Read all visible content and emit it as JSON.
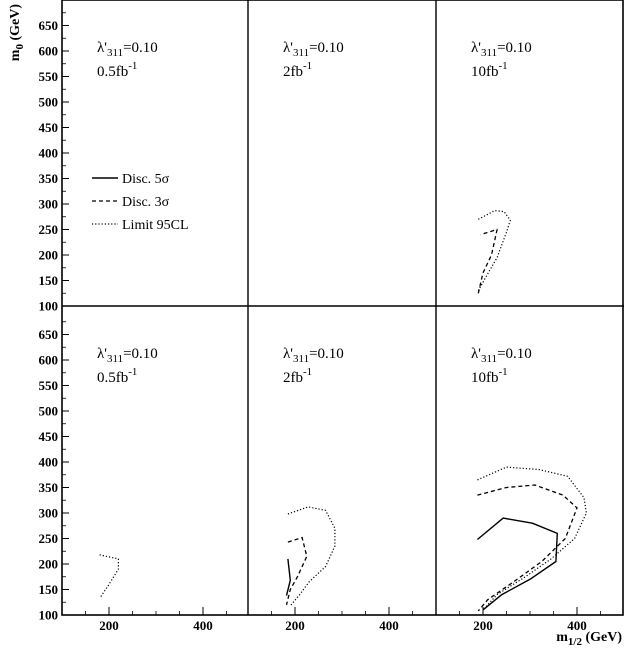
{
  "chart_data": {
    "type": "line",
    "xlabel": "m",
    "xlabel_sub": "1/2",
    "xlabel_unit": " (GeV)",
    "ylabel": "m",
    "ylabel_sub": "0",
    "ylabel_unit": " (GeV)",
    "xlim": [
      100,
      500
    ],
    "ylim": [
      100,
      700
    ],
    "xticks": [
      200,
      400
    ],
    "yticks": [
      100,
      150,
      200,
      250,
      300,
      350,
      400,
      450,
      500,
      550,
      600,
      650
    ],
    "legend": {
      "placement": "top-left panel, middle-left",
      "items": [
        {
          "key": "d5",
          "label": "Disc. 5σ",
          "style": "solid"
        },
        {
          "key": "d3",
          "label": "Disc. 3σ",
          "style": "dashed"
        },
        {
          "key": "lim",
          "label": "Limit 95CL",
          "style": "dotted"
        }
      ]
    },
    "panels": [
      {
        "row": 0,
        "col": 0,
        "lambda_pre": "λ'",
        "lambda_sub": "311",
        "lambda_post": "=0.10",
        "lumi_pre": "0.5fb",
        "lumi_sup": "-1",
        "series": []
      },
      {
        "row": 0,
        "col": 1,
        "lambda_pre": "λ'",
        "lambda_sub": "311",
        "lambda_post": "=0.10",
        "lumi_pre": "2fb",
        "lumi_sup": "-1",
        "series": []
      },
      {
        "row": 0,
        "col": 2,
        "lambda_pre": "λ'",
        "lambda_sub": "311",
        "lambda_post": "=0.10",
        "lumi_pre": "10fb",
        "lumi_sup": "-1",
        "series": [
          {
            "type": "d3",
            "points": [
              [
                190,
                125
              ],
              [
                200,
                165
              ],
              [
                218,
                200
              ],
              [
                230,
                250
              ],
              [
                195,
                240
              ]
            ]
          },
          {
            "type": "lim",
            "points": [
              [
                190,
                270
              ],
              [
                225,
                287
              ],
              [
                245,
                285
              ],
              [
                258,
                268
              ],
              [
                250,
                245
              ],
              [
                230,
                195
              ],
              [
                205,
                155
              ],
              [
                190,
                130
              ]
            ]
          }
        ]
      },
      {
        "row": 1,
        "col": 0,
        "lambda_pre": "λ'",
        "lambda_sub": "311",
        "lambda_post": "=0.10",
        "lumi_pre": "0.5fb",
        "lumi_sup": "-1",
        "series": [
          {
            "type": "lim",
            "points": [
              [
                180,
                218
              ],
              [
                220,
                210
              ],
              [
                220,
                190
              ],
              [
                200,
                160
              ],
              [
                182,
                135
              ]
            ]
          }
        ]
      },
      {
        "row": 1,
        "col": 1,
        "lambda_pre": "λ'",
        "lambda_sub": "311",
        "lambda_post": "=0.10",
        "lumi_pre": "2fb",
        "lumi_sup": "-1",
        "series": [
          {
            "type": "d5",
            "points": [
              [
                185,
                210
              ],
              [
                190,
                168
              ],
              [
                182,
                138
              ]
            ]
          },
          {
            "type": "d3",
            "points": [
              [
                185,
                243
              ],
              [
                215,
                252
              ],
              [
                225,
                215
              ],
              [
                205,
                175
              ],
              [
                190,
                150
              ],
              [
                182,
                120
              ]
            ]
          },
          {
            "type": "lim",
            "points": [
              [
                185,
                298
              ],
              [
                228,
                312
              ],
              [
                265,
                305
              ],
              [
                285,
                270
              ],
              [
                285,
                235
              ],
              [
                265,
                195
              ],
              [
                230,
                165
              ],
              [
                210,
                140
              ],
              [
                190,
                118
              ]
            ]
          }
        ]
      },
      {
        "row": 1,
        "col": 2,
        "lambda_pre": "λ'",
        "lambda_sub": "311",
        "lambda_post": "=0.10",
        "lumi_pre": "10fb",
        "lumi_sup": "-1",
        "series": [
          {
            "type": "d5",
            "points": [
              [
                188,
                248
              ],
              [
                243,
                290
              ],
              [
                305,
                280
              ],
              [
                358,
                260
              ],
              [
                355,
                205
              ],
              [
                300,
                170
              ],
              [
                240,
                140
              ],
              [
                200,
                110
              ]
            ]
          },
          {
            "type": "d3",
            "points": [
              [
                188,
                335
              ],
              [
                250,
                350
              ],
              [
                310,
                355
              ],
              [
                370,
                335
              ],
              [
                400,
                310
              ],
              [
                375,
                250
              ],
              [
                325,
                205
              ],
              [
                265,
                165
              ],
              [
                210,
                130
              ],
              [
                190,
                108
              ]
            ]
          },
          {
            "type": "lim",
            "points": [
              [
                188,
                365
              ],
              [
                250,
                390
              ],
              [
                320,
                385
              ],
              [
                380,
                372
              ],
              [
                415,
                330
              ],
              [
                420,
                300
              ],
              [
                395,
                250
              ],
              [
                345,
                210
              ],
              [
                290,
                175
              ],
              [
                230,
                140
              ],
              [
                200,
                110
              ]
            ]
          }
        ]
      }
    ]
  }
}
